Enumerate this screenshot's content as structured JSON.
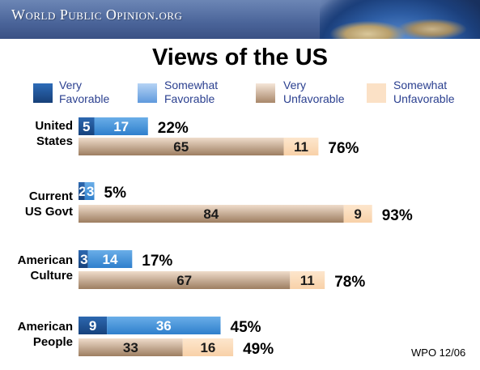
{
  "banner": {
    "text": "World Public Opinion.org"
  },
  "colors": {
    "very_favorable": "#1f4f8f",
    "somewhat_favorable": "#4a95dc",
    "very_unfavorable": "#b59b82",
    "somewhat_unfavorable": "#fad7b1",
    "label_blue": "#2a3f8f"
  },
  "legend": {
    "very_favorable": "Very Favorable",
    "somewhat_favorable": "Somewhat Favorable",
    "very_unfavorable": "Very Unfavorable",
    "somewhat_unfavorable": "Somewhat Unfavorable"
  },
  "footer": {
    "source": "WPO 12/06"
  },
  "chart_data": {
    "type": "bar",
    "orientation": "horizontal",
    "stacked": true,
    "title": "Views of the US",
    "categories": [
      {
        "label_lines": [
          "United",
          "States"
        ]
      },
      {
        "label_lines": [
          "Current",
          "US Govt"
        ]
      },
      {
        "label_lines": [
          "American",
          "Culture"
        ]
      },
      {
        "label_lines": [
          "American",
          "People"
        ]
      }
    ],
    "series": [
      {
        "name": "Very Favorable",
        "group": "favorable",
        "values": [
          5,
          2,
          3,
          9
        ],
        "value_labels": [
          "5",
          "2",
          "3",
          "9"
        ]
      },
      {
        "name": "Somewhat Favorable",
        "group": "favorable",
        "values": [
          17,
          3,
          14,
          36
        ],
        "value_labels": [
          "17",
          "3",
          "14",
          "36"
        ]
      },
      {
        "name": "Very Unfavorable",
        "group": "unfavorable",
        "values": [
          65,
          84,
          67,
          33
        ],
        "value_labels": [
          "65",
          "84",
          "67",
          "33"
        ]
      },
      {
        "name": "Somewhat Unfavorable",
        "group": "unfavorable",
        "values": [
          11,
          9,
          11,
          16
        ],
        "value_labels": [
          "11",
          "9",
          "11",
          "16"
        ]
      }
    ],
    "totals": {
      "favorable": [
        "22%",
        "5%",
        "17%",
        "45%"
      ],
      "unfavorable": [
        "76%",
        "93%",
        "78%",
        "49%"
      ]
    },
    "legend_position": "top",
    "grid": false
  }
}
